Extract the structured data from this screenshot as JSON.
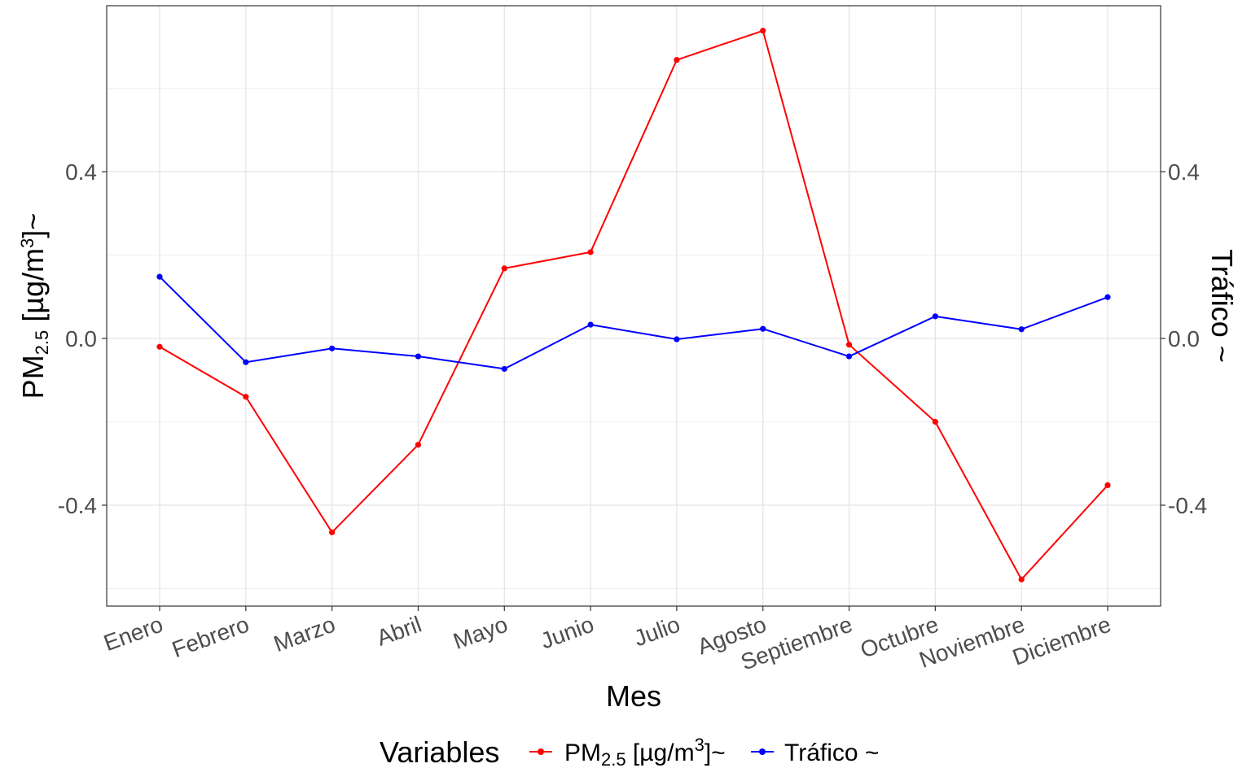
{
  "chart_data": {
    "type": "line",
    "categories": [
      "Enero",
      "Febrero",
      "Marzo",
      "Abril",
      "Mayo",
      "Junio",
      "Julio",
      "Agosto",
      "Septiembre",
      "Octubre",
      "Noviembre",
      "Diciembre"
    ],
    "series": [
      {
        "name": "PM2.5 [µg/m3]~",
        "color": "#ff0000",
        "values": [
          -0.02,
          -0.14,
          -0.465,
          -0.255,
          0.168,
          0.207,
          0.668,
          0.738,
          -0.015,
          -0.2,
          -0.578,
          -0.352
        ]
      },
      {
        "name": "Tráfico ~",
        "color": "#0000ff",
        "values": [
          0.148,
          -0.057,
          -0.024,
          -0.043,
          -0.073,
          0.033,
          -0.002,
          0.023,
          -0.043,
          0.053,
          0.022,
          0.099
        ]
      }
    ],
    "xlabel": "Mes",
    "ylabel_left": {
      "base": "PM",
      "sub": "2.5",
      "unit_pre": " [µg/m",
      "sup": "3",
      "unit_post": "]~"
    },
    "ylabel_right": "Tráfico ~",
    "yticks": [
      "-0.4",
      "0.0",
      "0.4"
    ],
    "ytick_values": [
      -0.4,
      0.0,
      0.4
    ],
    "ylim": [
      -0.64,
      0.8
    ],
    "grid": true,
    "legend": {
      "title": "Variables",
      "position": "bottom",
      "entries": [
        {
          "base": "PM",
          "sub": "2.5",
          "unit_pre": " [µg/m",
          "sup": "3",
          "unit_post": "]~",
          "color": "#ff0000"
        },
        {
          "text": "Tráfico ~",
          "color": "#0000ff"
        }
      ]
    }
  }
}
